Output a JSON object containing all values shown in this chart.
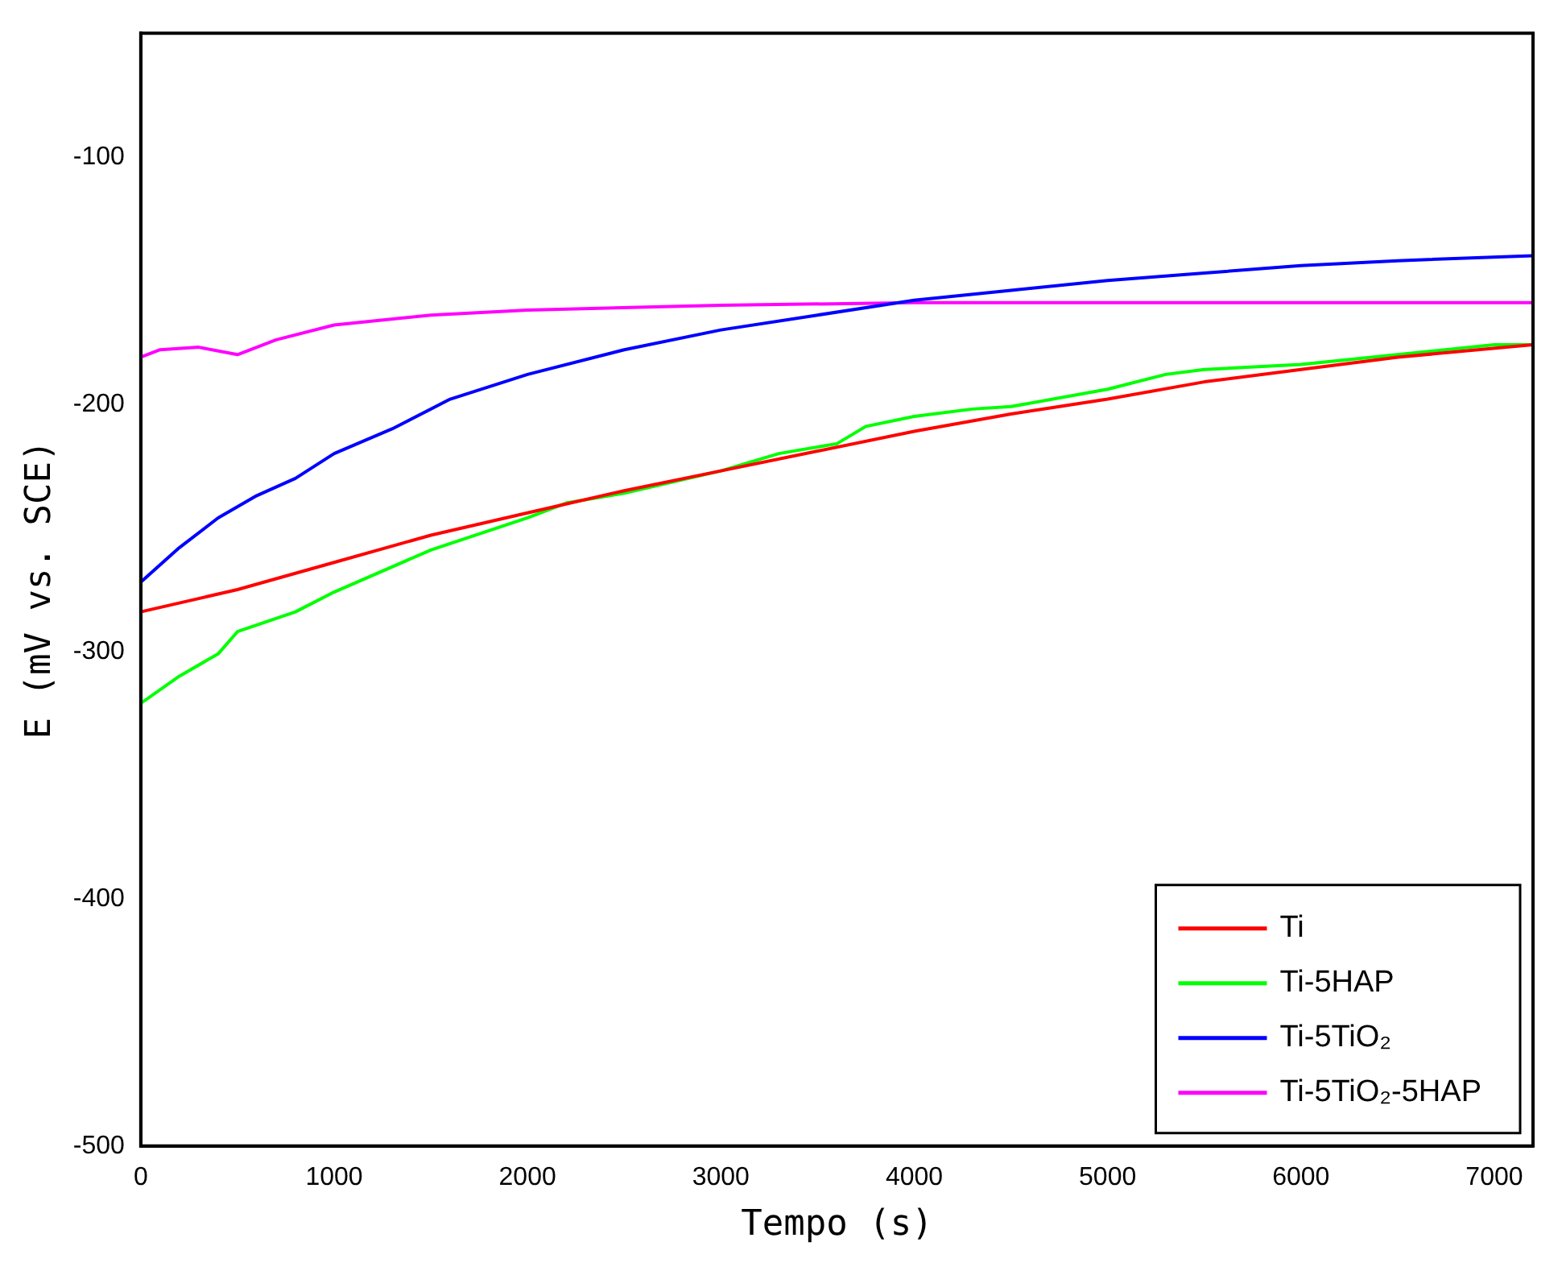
{
  "chart_data": {
    "type": "line",
    "xlabel": "Tempo (s)",
    "ylabel": "E (mV vs. SCE)",
    "xlim": [
      0,
      7200
    ],
    "xticks": [
      0,
      1000,
      2000,
      3000,
      4000,
      5000,
      6000,
      7000
    ],
    "ylim": [
      -500,
      -50
    ],
    "yticks": [
      -500,
      -400,
      -300,
      -200,
      -100
    ],
    "grid": false,
    "legend": "bottom right",
    "marker": "none",
    "line_style": "solid",
    "series": [
      {
        "name": "Ti",
        "color": "#ff0000",
        "x": [
          0,
          500,
          1000,
          1500,
          2000,
          2500,
          3000,
          3500,
          4000,
          4500,
          5000,
          5500,
          6000,
          6500,
          7200
        ],
        "values": [
          -284,
          -275,
          -264,
          -253,
          -244,
          -235,
          -227,
          -219,
          -211,
          -204,
          -198,
          -191,
          -186,
          -181,
          -176
        ]
      },
      {
        "name": "Ti-5HAP",
        "color": "#00ff00",
        "x": [
          0,
          200,
          400,
          500,
          800,
          1000,
          1500,
          2000,
          2200,
          2500,
          3000,
          3300,
          3600,
          3750,
          4000,
          4300,
          4500,
          5000,
          5300,
          5500,
          6000,
          6500,
          7000,
          7200
        ],
        "values": [
          -321,
          -310,
          -301,
          -292,
          -284,
          -276,
          -259,
          -246,
          -240,
          -236,
          -227,
          -220,
          -216,
          -209,
          -205,
          -202,
          -201,
          -194,
          -188,
          -186,
          -184,
          -180,
          -176,
          -176
        ]
      },
      {
        "name": "Ti-5TiO₂",
        "color": "#0000ff",
        "x": [
          0,
          200,
          400,
          600,
          800,
          1000,
          1300,
          1600,
          2000,
          2500,
          3000,
          3500,
          4000,
          4500,
          5000,
          5500,
          6000,
          6500,
          7200
        ],
        "values": [
          -272,
          -258,
          -246,
          -237,
          -230,
          -220,
          -210,
          -198,
          -188,
          -178,
          -170,
          -164,
          -158,
          -154,
          -150,
          -147,
          -144,
          -142,
          -140
        ]
      },
      {
        "name": "Ti-5TiO₂-5HAP",
        "color": "#ff00ff",
        "x": [
          0,
          100,
          300,
          500,
          700,
          1000,
          1500,
          2000,
          3000,
          4000,
          5000,
          6000,
          7200
        ],
        "values": [
          -181,
          -178,
          -177,
          -180,
          -174,
          -168,
          -164,
          -162,
          -160,
          -159,
          -159,
          -159,
          -159
        ]
      }
    ]
  }
}
